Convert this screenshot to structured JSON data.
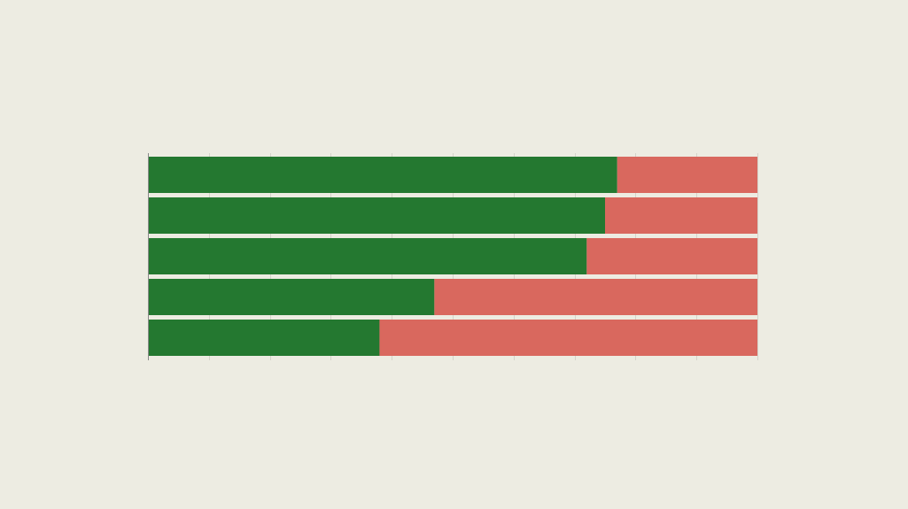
{
  "colors": {
    "background": "#edece2",
    "positive": "#247830",
    "negative": "#d9685e",
    "separator": "#edece2",
    "axis": "#888888",
    "grid": "#d4d3ca"
  },
  "chart_data": {
    "type": "bar",
    "orientation": "horizontal",
    "stacked": true,
    "title": "",
    "xlabel": "",
    "ylabel": "",
    "categories": [
      "",
      "",
      "",
      "",
      ""
    ],
    "xlim": [
      0,
      100
    ],
    "x_ticks": [
      0,
      10,
      20,
      30,
      40,
      50,
      60,
      70,
      80,
      90,
      100
    ],
    "grid": true,
    "legend": "none",
    "series": [
      {
        "values": [
          77,
          75,
          72,
          47,
          38
        ],
        "color": "#247830"
      },
      {
        "values": [
          23,
          25,
          28,
          53,
          62
        ],
        "color": "#d9685e"
      }
    ]
  }
}
